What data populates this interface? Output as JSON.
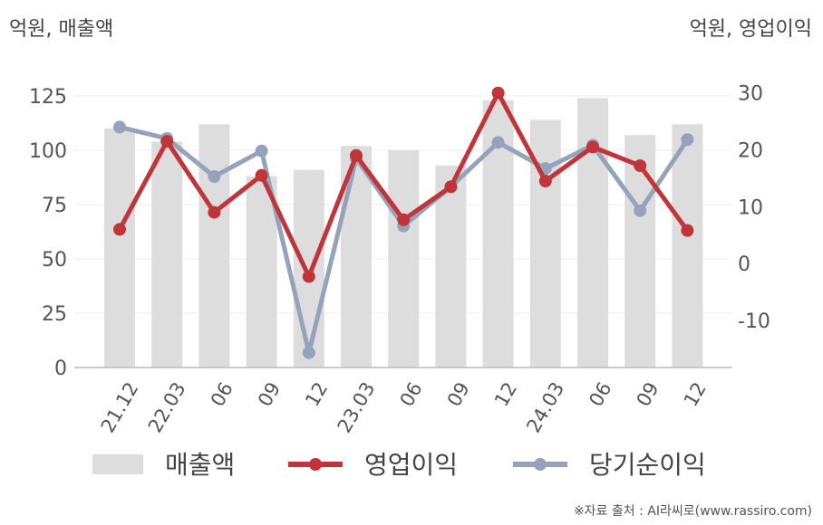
{
  "units": {
    "left": "억원, 매출액",
    "right": "억원, 영업이익"
  },
  "source": "※자료 출처 : AI라씨로(www.rassiro.com)",
  "colors": {
    "revenue": "#dddddd",
    "operating_income": "#c0353a",
    "net_income": "#95a2bb",
    "axis": "#bbbbbb",
    "grid": "#eeeeee"
  },
  "chart_data": {
    "type": "bar+line",
    "categories": [
      "21.12",
      "22.03",
      "06",
      "09",
      "12",
      "23.03",
      "06",
      "09",
      "12",
      "24.03",
      "06",
      "09",
      "12"
    ],
    "left_axis": {
      "ticks": [
        "0",
        "25",
        "50",
        "75",
        "100",
        "125"
      ],
      "ylim": [
        0,
        135
      ]
    },
    "right_axis": {
      "ticks": [
        "-10",
        "0",
        "10",
        "20",
        "30"
      ],
      "ylim": [
        -18.3,
        33.3
      ]
    },
    "series": [
      {
        "name": "매출액",
        "type": "bar",
        "axis": "left",
        "values": [
          110,
          104,
          112,
          88,
          91,
          102,
          100,
          93,
          123,
          114,
          124,
          107,
          112
        ]
      },
      {
        "name": "영업이익",
        "type": "line",
        "axis": "right",
        "values": [
          6,
          21.5,
          9,
          15.5,
          -2.3,
          19,
          7.7,
          13.5,
          30,
          14.5,
          20.5,
          17.2,
          5.8
        ]
      },
      {
        "name": "당기순이익",
        "type": "line",
        "axis": "right",
        "values": [
          24,
          22,
          15.3,
          19.8,
          -15.7,
          18.5,
          6.6,
          13.5,
          21.3,
          16.7,
          20.8,
          9.3,
          21.8
        ]
      }
    ],
    "legend": [
      "매출액",
      "영업이익",
      "당기순이익"
    ],
    "legend_position": "bottom"
  }
}
